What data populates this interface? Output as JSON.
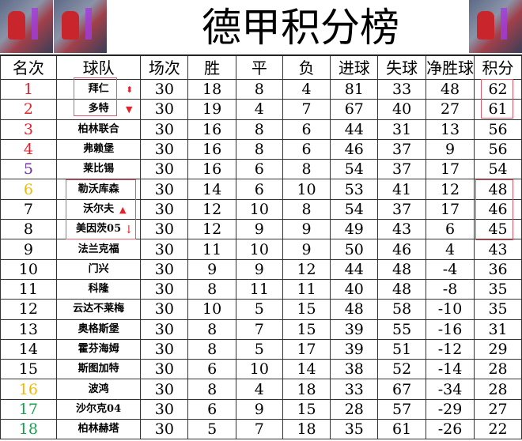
{
  "title": "德甲积分榜",
  "headers": [
    "名次",
    "球队",
    "场次",
    "胜",
    "平",
    "负",
    "进球",
    "失球",
    "净胜球",
    "积分"
  ],
  "colors": {
    "red": "#e8202a",
    "purple": "#7030a0",
    "orange": "#f5b800",
    "green": "#16a050",
    "black": "#000000",
    "box": "#e05a6a"
  },
  "rows": [
    {
      "rank": "1",
      "team": "拜仁",
      "played": "30",
      "w": "18",
      "d": "8",
      "l": "4",
      "gf": "81",
      "ga": "33",
      "gd": "48",
      "pts": "62",
      "color": "#e8202a",
      "arrow": "up-down"
    },
    {
      "rank": "2",
      "team": "多特",
      "played": "30",
      "w": "19",
      "d": "4",
      "l": "7",
      "gf": "67",
      "ga": "40",
      "gd": "27",
      "pts": "61",
      "color": "#e8202a",
      "arrow": "down"
    },
    {
      "rank": "3",
      "team": "柏林联合",
      "played": "30",
      "w": "16",
      "d": "8",
      "l": "6",
      "gf": "44",
      "ga": "31",
      "gd": "13",
      "pts": "56",
      "color": "#e8202a"
    },
    {
      "rank": "4",
      "team": "弗赖堡",
      "played": "30",
      "w": "16",
      "d": "8",
      "l": "6",
      "gf": "46",
      "ga": "37",
      "gd": "9",
      "pts": "56",
      "color": "#e8202a"
    },
    {
      "rank": "5",
      "team": "莱比锡",
      "played": "30",
      "w": "16",
      "d": "6",
      "l": "8",
      "gf": "54",
      "ga": "37",
      "gd": "17",
      "pts": "54",
      "color": "#7030a0"
    },
    {
      "rank": "6",
      "team": "勒沃库森",
      "played": "30",
      "w": "14",
      "d": "6",
      "l": "10",
      "gf": "53",
      "ga": "41",
      "gd": "12",
      "pts": "48",
      "color": "#f5b800"
    },
    {
      "rank": "7",
      "team": "沃尔夫",
      "played": "30",
      "w": "12",
      "d": "10",
      "l": "8",
      "gf": "54",
      "ga": "37",
      "gd": "17",
      "pts": "46",
      "color": "#000000",
      "arrow": "up"
    },
    {
      "rank": "8",
      "team": "美因茨05",
      "played": "30",
      "w": "12",
      "d": "9",
      "l": "9",
      "gf": "49",
      "ga": "43",
      "gd": "6",
      "pts": "45",
      "color": "#000000",
      "arrow": "down"
    },
    {
      "rank": "9",
      "team": "法兰克福",
      "played": "30",
      "w": "11",
      "d": "10",
      "l": "9",
      "gf": "50",
      "ga": "46",
      "gd": "4",
      "pts": "43",
      "color": "#000000"
    },
    {
      "rank": "10",
      "team": "门兴",
      "played": "30",
      "w": "9",
      "d": "9",
      "l": "12",
      "gf": "44",
      "ga": "48",
      "gd": "-4",
      "pts": "36",
      "color": "#000000"
    },
    {
      "rank": "11",
      "team": "科隆",
      "played": "30",
      "w": "8",
      "d": "11",
      "l": "11",
      "gf": "40",
      "ga": "48",
      "gd": "-8",
      "pts": "35",
      "color": "#000000"
    },
    {
      "rank": "12",
      "team": "云达不莱梅",
      "played": "30",
      "w": "10",
      "d": "5",
      "l": "15",
      "gf": "48",
      "ga": "58",
      "gd": "-10",
      "pts": "35",
      "color": "#000000"
    },
    {
      "rank": "13",
      "team": "奥格斯堡",
      "played": "30",
      "w": "8",
      "d": "7",
      "l": "15",
      "gf": "39",
      "ga": "55",
      "gd": "-16",
      "pts": "31",
      "color": "#000000"
    },
    {
      "rank": "14",
      "team": "霍芬海姆",
      "played": "30",
      "w": "8",
      "d": "5",
      "l": "17",
      "gf": "39",
      "ga": "51",
      "gd": "-12",
      "pts": "29",
      "color": "#000000"
    },
    {
      "rank": "15",
      "team": "斯图加特",
      "played": "30",
      "w": "6",
      "d": "10",
      "l": "14",
      "gf": "38",
      "ga": "52",
      "gd": "-14",
      "pts": "28",
      "color": "#000000"
    },
    {
      "rank": "16",
      "team": "波鸿",
      "played": "30",
      "w": "8",
      "d": "4",
      "l": "18",
      "gf": "33",
      "ga": "67",
      "gd": "-34",
      "pts": "28",
      "color": "#f5b800"
    },
    {
      "rank": "17",
      "team": "沙尔克04",
      "played": "30",
      "w": "6",
      "d": "9",
      "l": "15",
      "gf": "28",
      "ga": "57",
      "gd": "-29",
      "pts": "27",
      "color": "#16a050"
    },
    {
      "rank": "18",
      "team": "柏林赫塔",
      "played": "30",
      "w": "5",
      "d": "7",
      "l": "18",
      "gf": "35",
      "ga": "61",
      "gd": "-26",
      "pts": "22",
      "color": "#16a050"
    }
  ]
}
